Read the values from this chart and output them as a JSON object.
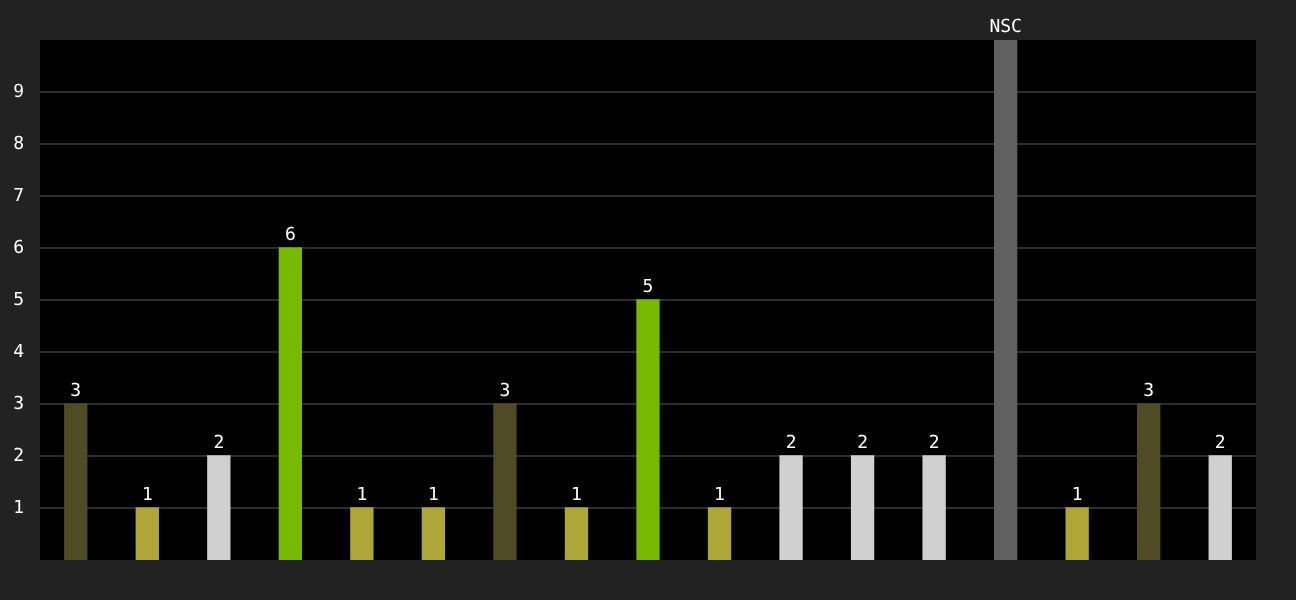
{
  "chart_data": {
    "type": "bar",
    "categories": [
      null,
      null,
      null,
      null,
      null,
      null,
      null,
      null,
      null,
      null,
      null,
      null,
      null,
      null,
      null,
      null,
      null
    ],
    "values": [
      3,
      1,
      2,
      6,
      1,
      1,
      3,
      1,
      5,
      1,
      2,
      2,
      2,
      10,
      1,
      3,
      2
    ],
    "colors": [
      "#4f4c25",
      "#aea637",
      "#d0d0d0",
      "#76b900",
      "#aea637",
      "#aea637",
      "#4f4c25",
      "#aea637",
      "#76b900",
      "#aea637",
      "#d0d0d0",
      "#d0d0d0",
      "#d0d0d0",
      "#606060",
      "#aea637",
      "#4f4c25",
      "#d0d0d0"
    ],
    "value_labels": [
      "3",
      "1",
      "2",
      "6",
      "1",
      "1",
      "3",
      "1",
      "5",
      "1",
      "2",
      "2",
      "2",
      "NSC",
      "1",
      "3",
      "2"
    ],
    "ylim": [
      0,
      10
    ],
    "yticks": [
      1,
      2,
      3,
      4,
      5,
      6,
      7,
      8,
      9
    ],
    "grid": "y",
    "legend": false
  }
}
